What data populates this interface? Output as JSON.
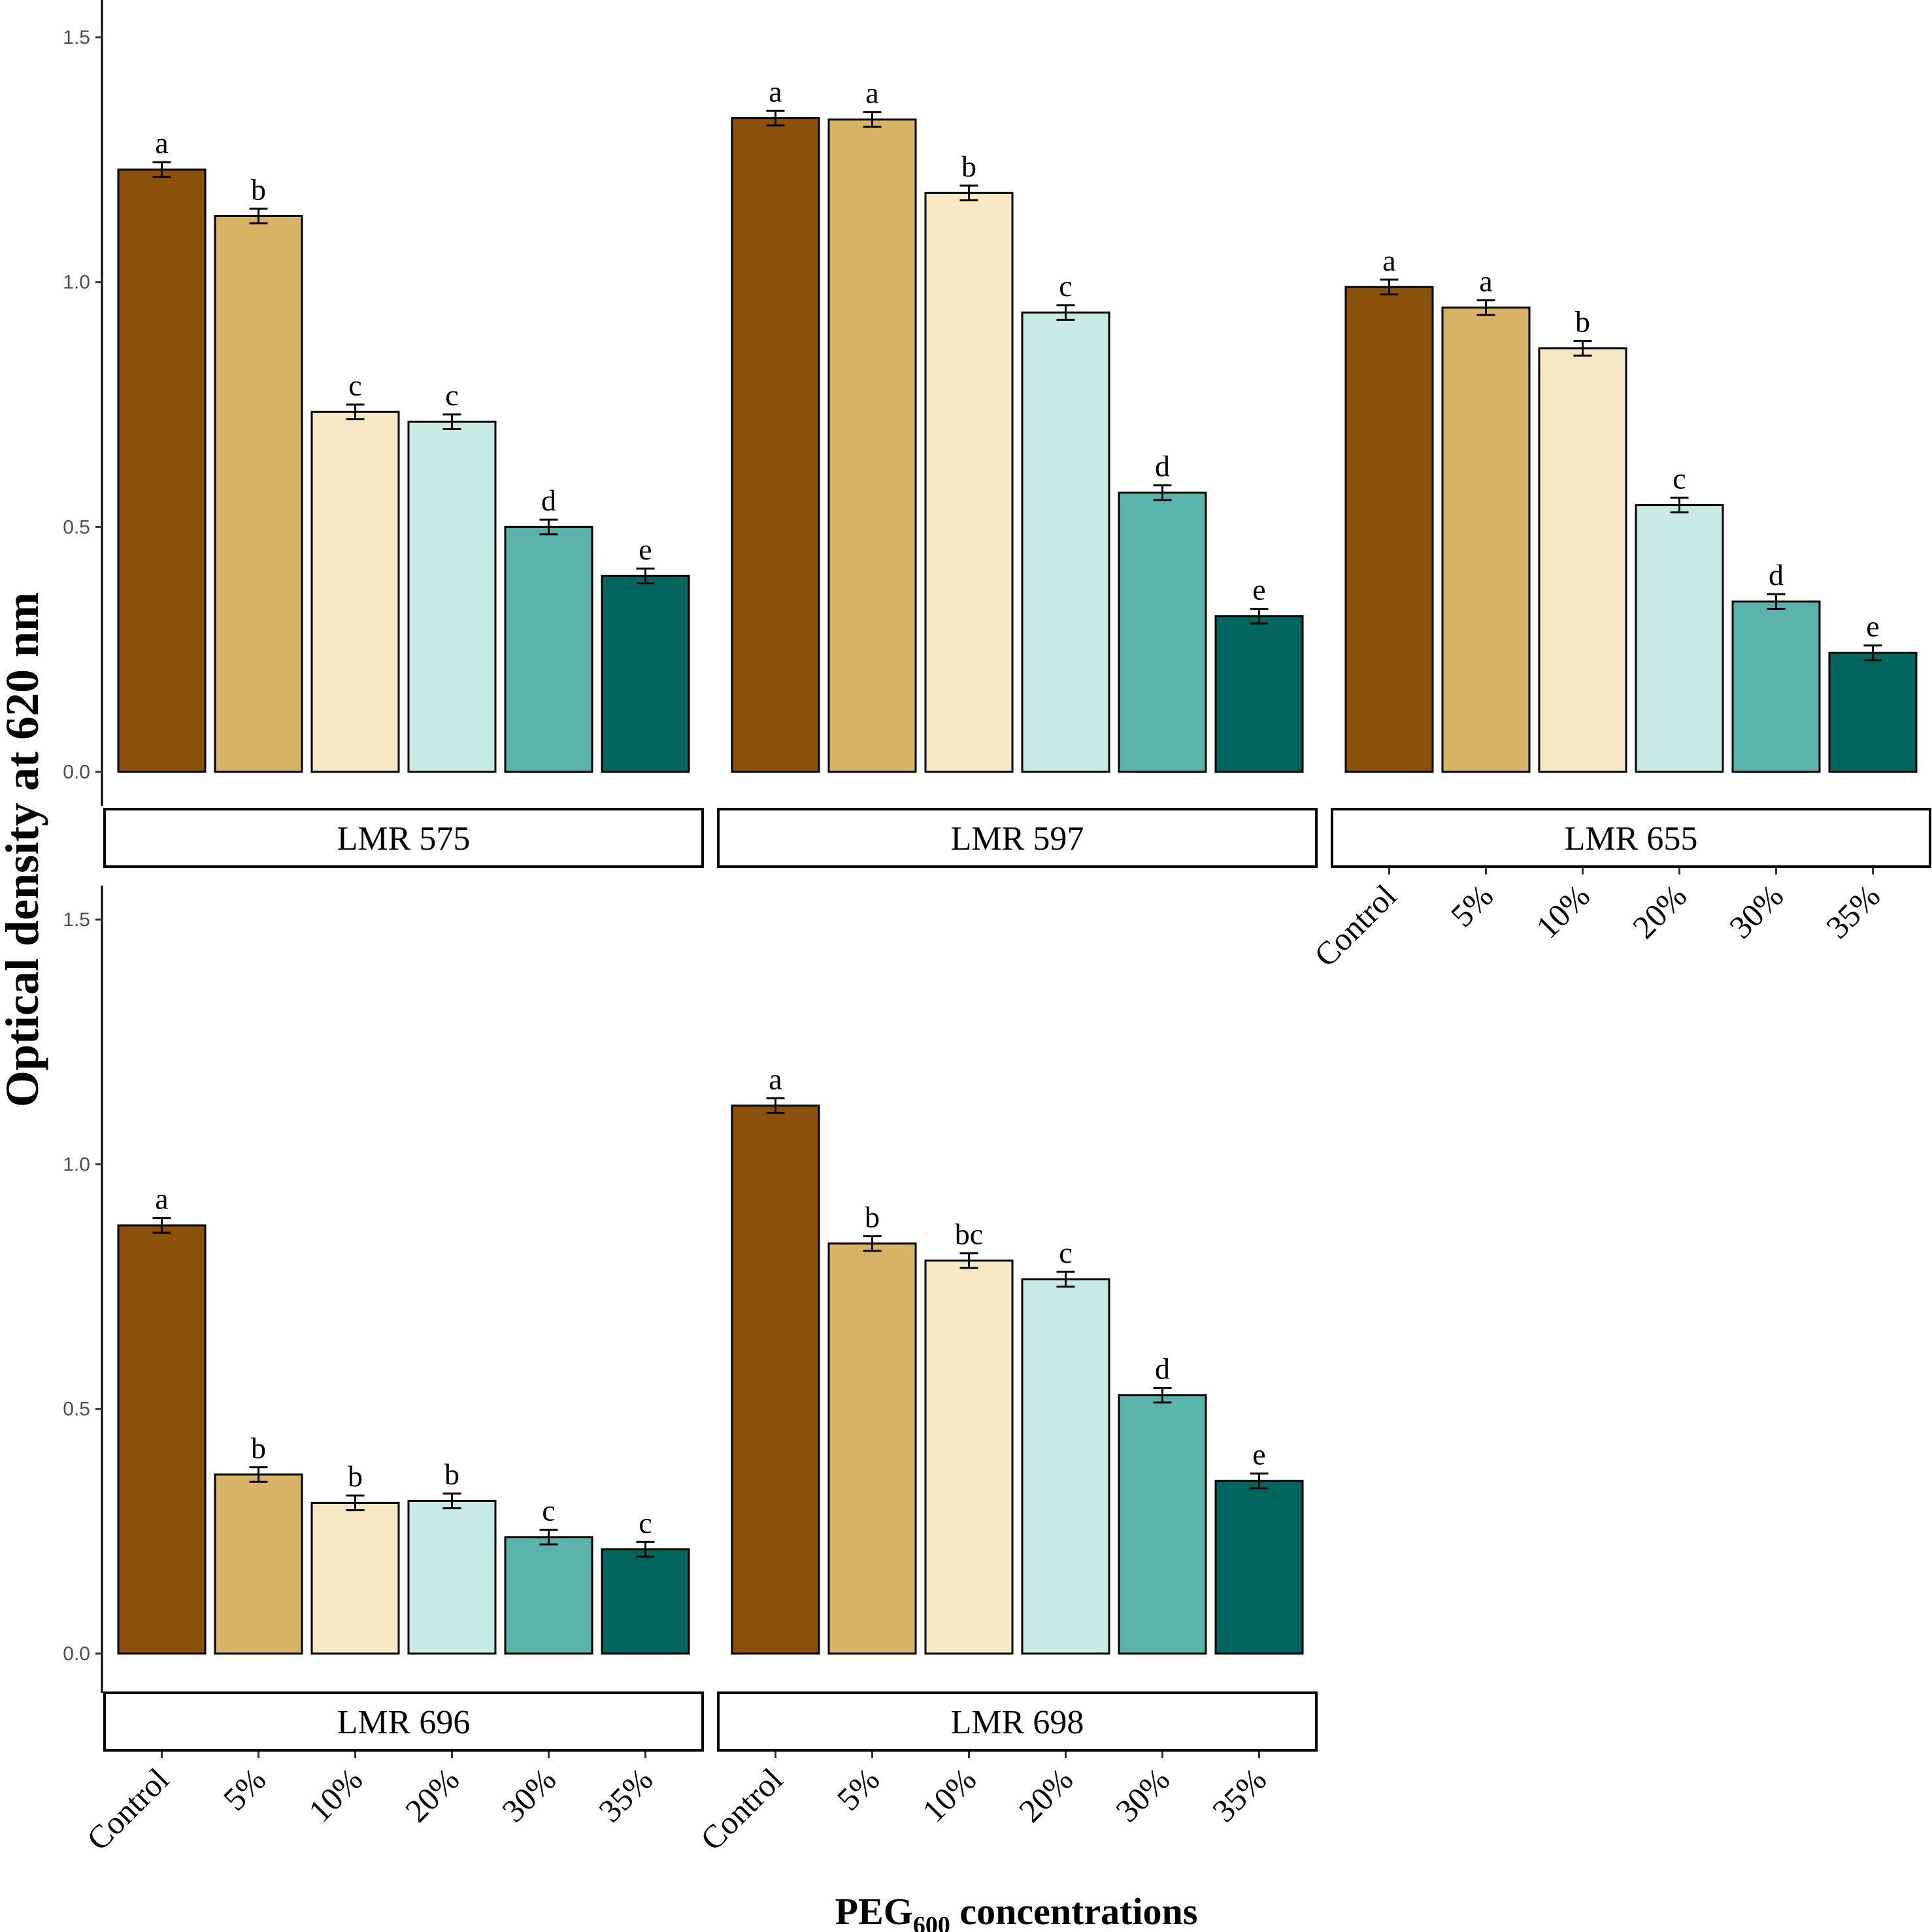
{
  "chart_data": {
    "type": "bar",
    "ylabel": "Optical density at 620 nm",
    "xlabel": {
      "main": "PEG",
      "subscript": "600",
      "rest": " concentrations"
    },
    "ylim": [
      0,
      1.5
    ],
    "yticks": [
      "0.0",
      "0.5",
      "1.0",
      "1.5"
    ],
    "ytick_values": [
      0,
      0.5,
      1.0,
      1.5
    ],
    "categories": [
      "Control",
      "5%",
      "10%",
      "20%",
      "30%",
      "35%"
    ],
    "colors": [
      "#8C510A",
      "#D8B365",
      "#F6E8C3",
      "#C7EAE5",
      "#5AB4AC",
      "#01665E"
    ],
    "panels": [
      {
        "name": "LMR 575",
        "values": [
          1.23,
          1.135,
          0.735,
          0.715,
          0.5,
          0.4
        ],
        "errors": [
          0.015,
          0.015,
          0.015,
          0.015,
          0.015,
          0.015
        ],
        "letters": [
          "a",
          "b",
          "c",
          "c",
          "d",
          "e"
        ]
      },
      {
        "name": "LMR 597",
        "values": [
          1.335,
          1.332,
          1.182,
          0.938,
          0.57,
          0.318
        ],
        "errors": [
          0.015,
          0.015,
          0.015,
          0.015,
          0.015,
          0.015
        ],
        "letters": [
          "a",
          "a",
          "b",
          "c",
          "d",
          "e"
        ]
      },
      {
        "name": "LMR 655",
        "values": [
          0.99,
          0.948,
          0.865,
          0.545,
          0.348,
          0.243
        ],
        "errors": [
          0.015,
          0.015,
          0.015,
          0.015,
          0.015,
          0.015
        ],
        "letters": [
          "a",
          "a",
          "b",
          "c",
          "d",
          "e"
        ]
      },
      {
        "name": "LMR 696",
        "values": [
          0.875,
          0.366,
          0.308,
          0.312,
          0.238,
          0.213
        ],
        "errors": [
          0.015,
          0.015,
          0.015,
          0.015,
          0.015,
          0.015
        ],
        "letters": [
          "a",
          "b",
          "b",
          "b",
          "c",
          "c"
        ]
      },
      {
        "name": "LMR 698",
        "values": [
          1.12,
          0.838,
          0.803,
          0.765,
          0.528,
          0.353
        ],
        "errors": [
          0.015,
          0.015,
          0.015,
          0.015,
          0.015,
          0.015
        ],
        "letters": [
          "a",
          "b",
          "bc",
          "c",
          "d",
          "e"
        ]
      }
    ]
  }
}
